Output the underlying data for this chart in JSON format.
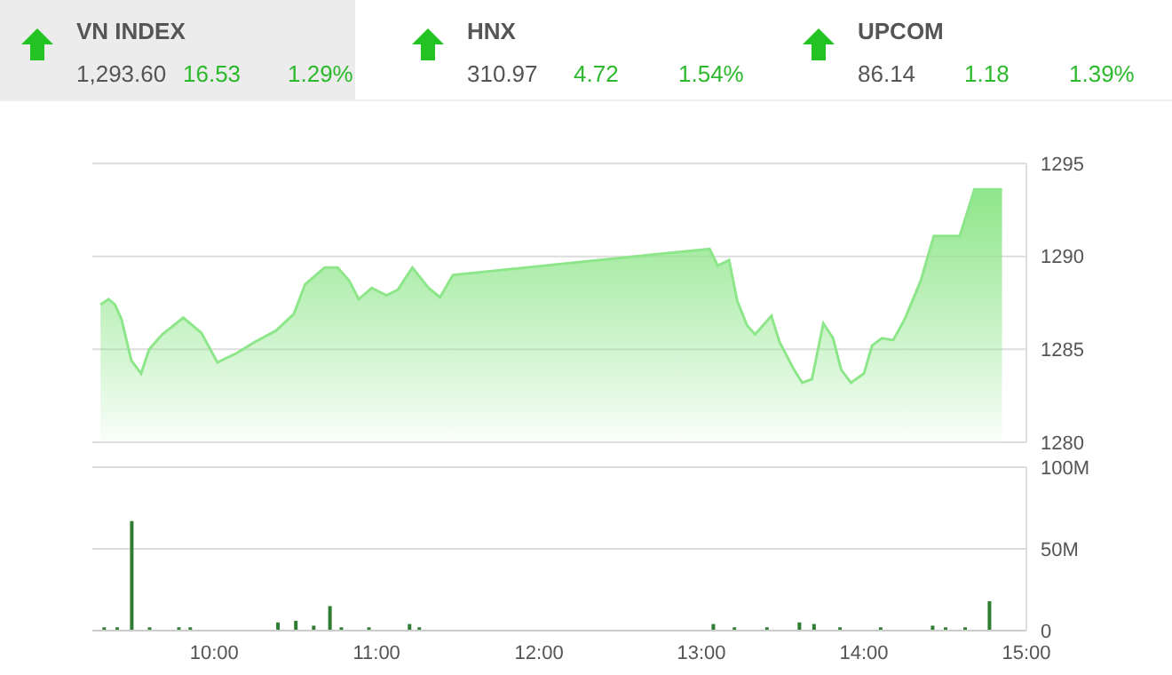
{
  "chart_data": [
    {
      "type": "other",
      "title": "VN INDEX",
      "values": [
        1293.6,
        16.53
      ],
      "value_labels": [
        "1,293.60",
        "16.53"
      ],
      "data_labels": true,
      "annotations": [
        "1.29%"
      ],
      "colors": [
        "#555555",
        "#2db92d"
      ]
    },
    {
      "type": "other",
      "title": "HNX",
      "values": [
        310.97,
        4.72
      ],
      "data_labels": true,
      "annotations": [
        "1.54%"
      ],
      "colors": [
        "#555555",
        "#2db92d"
      ]
    },
    {
      "type": "other",
      "title": "UPCOM",
      "values": [
        86.14,
        1.18
      ],
      "data_labels": true,
      "annotations": [
        "1.39%"
      ],
      "colors": [
        "#555555",
        "#2db92d"
      ]
    },
    {
      "type": "area",
      "xlim": [
        9.25,
        15
      ],
      "ylim": [
        1280,
        1295
      ],
      "yticks": [
        1280,
        1285,
        1290,
        1295
      ],
      "grid": "y",
      "tick_labels": "y",
      "series": [
        {
          "color": "#8ee68a",
          "x": [
            9.3,
            9.35,
            9.39,
            9.43,
            9.49,
            9.55,
            9.6,
            9.68,
            9.81,
            9.92,
            10.02,
            10.14,
            10.25,
            10.38,
            10.49,
            10.56,
            10.68,
            10.76,
            10.83,
            10.89,
            10.97,
            11.06,
            11.13,
            11.22,
            11.32,
            11.39,
            11.47,
            13.05,
            13.1,
            13.17,
            13.22,
            13.28,
            13.33,
            13.43,
            13.48,
            13.57,
            13.62,
            13.68,
            13.75,
            13.81,
            13.86,
            13.92,
            14.0,
            14.05,
            14.11,
            14.18,
            14.25,
            14.35,
            14.43,
            14.59,
            14.68,
            14.85
          ],
          "values": [
            1287.4,
            1287.7,
            1287.4,
            1286.6,
            1284.4,
            1283.7,
            1285.0,
            1285.8,
            1286.7,
            1285.9,
            1284.3,
            1284.8,
            1285.4,
            1286.0,
            1286.9,
            1288.5,
            1289.4,
            1289.4,
            1288.7,
            1287.7,
            1288.3,
            1287.9,
            1288.2,
            1289.4,
            1288.3,
            1287.8,
            1289.0,
            1290.4,
            1289.5,
            1289.8,
            1287.6,
            1286.3,
            1285.8,
            1286.8,
            1285.4,
            1283.9,
            1283.2,
            1283.4,
            1286.4,
            1285.6,
            1283.9,
            1283.2,
            1283.7,
            1285.2,
            1285.6,
            1285.5,
            1286.6,
            1288.7,
            1291.1,
            1291.1,
            1293.6,
            1293.6
          ]
        }
      ]
    },
    {
      "type": "bar",
      "xlim": [
        9.25,
        15
      ],
      "xticks": [
        {
          "value": 10,
          "label": "10:00"
        },
        {
          "value": 11,
          "label": "11:00"
        },
        {
          "value": 12,
          "label": "12:00"
        },
        {
          "value": 13,
          "label": "13:00"
        },
        {
          "value": 14,
          "label": "14:00"
        },
        {
          "value": 15,
          "label": "15:00"
        }
      ],
      "ylim": [
        0,
        100
      ],
      "yticks": [
        0,
        {
          "value": 50,
          "label": "50M"
        },
        {
          "value": 100,
          "label": "100M"
        }
      ],
      "grid": "y",
      "series": [
        {
          "color": "#2e7d32",
          "x": [
            9.32,
            9.4,
            9.49,
            9.6,
            9.78,
            9.85,
            10.39,
            10.5,
            10.61,
            10.71,
            10.78,
            10.95,
            11.2,
            11.26,
            13.07,
            13.2,
            13.4,
            13.6,
            13.69,
            13.85,
            14.1,
            14.42,
            14.5,
            14.62,
            14.77
          ],
          "values": [
            2,
            2,
            67,
            2,
            2,
            2,
            5,
            6,
            3,
            15,
            2,
            2,
            4,
            2,
            4,
            2,
            2,
            5,
            4,
            2,
            2,
            3,
            2,
            2,
            18
          ]
        }
      ]
    }
  ]
}
